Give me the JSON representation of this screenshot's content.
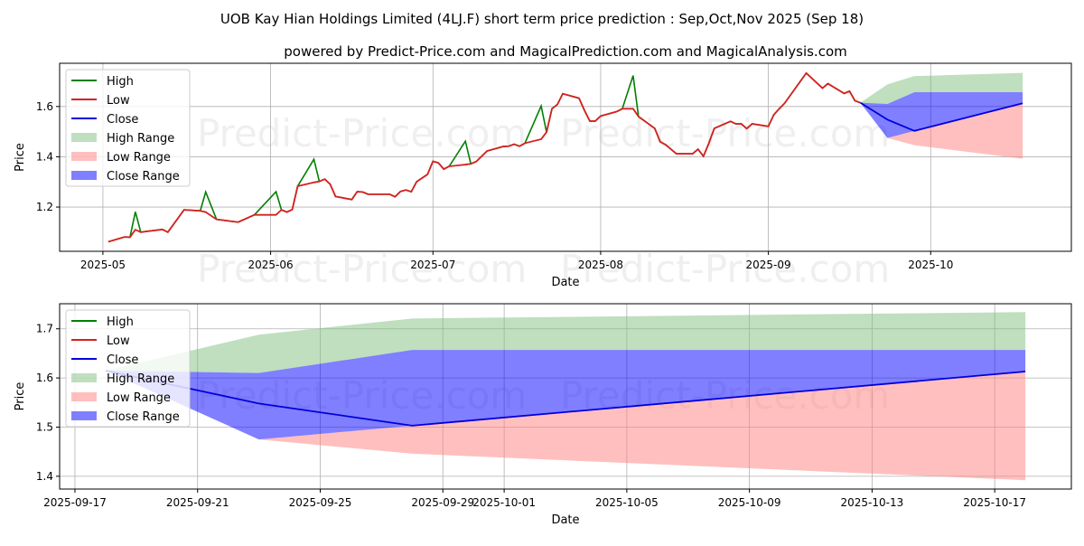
{
  "title": "UOB Kay Hian Holdings Limited (4LJ.F) short term price prediction : Sep,Oct,Nov 2025 (Sep 18)",
  "subtitle": "powered by Predict-Price.com and MagicalPrediction.com and MagicalAnalysis.com",
  "watermark": "Predict-Price.com",
  "colors": {
    "high": "#008000",
    "low": "#d62020",
    "close": "#0000dd",
    "high_range": "#7fbf7f",
    "low_range": "#ff7f7f",
    "close_range": "#0000ff"
  },
  "legend": [
    "High",
    "Low",
    "Close",
    "High Range",
    "Low Range",
    "Close Range"
  ],
  "chart_data": [
    {
      "type": "line",
      "xlabel": "Date",
      "ylabel": "Price",
      "xlim": [
        "2025-04-23T00:00:00Z",
        "2025-10-27T00:00:00Z"
      ],
      "ylim": [
        1.024,
        1.772
      ],
      "xticks": [
        [
          "2025-05-01",
          "2025-05"
        ],
        [
          "2025-06-01",
          "2025-06"
        ],
        [
          "2025-07-01",
          "2025-07"
        ],
        [
          "2025-08-01",
          "2025-08"
        ],
        [
          "2025-09-01",
          "2025-09"
        ],
        [
          "2025-10-01",
          "2025-10"
        ]
      ],
      "yticks": [
        [
          "1.2",
          "1.2"
        ],
        [
          "1.4",
          "1.4"
        ],
        [
          "1.6",
          "1.6"
        ]
      ],
      "grid": true,
      "legend_position": "top-left",
      "low": [
        [
          "2025-05-02",
          1.062
        ],
        [
          "2025-05-05",
          1.081
        ],
        [
          "2025-05-06",
          1.08
        ],
        [
          "2025-05-07",
          1.11
        ],
        [
          "2025-05-08",
          1.1
        ],
        [
          "2025-05-09",
          1.103
        ],
        [
          "2025-05-12",
          1.111
        ],
        [
          "2025-05-13",
          1.1
        ],
        [
          "2025-05-16",
          1.189
        ],
        [
          "2025-05-19",
          1.185
        ],
        [
          "2025-05-20",
          1.18
        ],
        [
          "2025-05-22",
          1.151
        ],
        [
          "2025-05-26",
          1.14
        ],
        [
          "2025-05-29",
          1.169
        ],
        [
          "2025-06-02",
          1.169
        ],
        [
          "2025-06-03",
          1.189
        ],
        [
          "2025-06-04",
          1.18
        ],
        [
          "2025-06-05",
          1.19
        ],
        [
          "2025-06-06",
          1.283
        ],
        [
          "2025-06-09",
          1.298
        ],
        [
          "2025-06-10",
          1.302
        ],
        [
          "2025-06-11",
          1.311
        ],
        [
          "2025-06-12",
          1.291
        ],
        [
          "2025-06-13",
          1.242
        ],
        [
          "2025-06-16",
          1.23
        ],
        [
          "2025-06-17",
          1.261
        ],
        [
          "2025-06-18",
          1.26
        ],
        [
          "2025-06-19",
          1.251
        ],
        [
          "2025-06-23",
          1.251
        ],
        [
          "2025-06-24",
          1.241
        ],
        [
          "2025-06-25",
          1.262
        ],
        [
          "2025-06-26",
          1.268
        ],
        [
          "2025-06-27",
          1.261
        ],
        [
          "2025-06-28",
          1.301
        ],
        [
          "2025-06-30",
          1.33
        ],
        [
          "2025-07-01",
          1.382
        ],
        [
          "2025-07-02",
          1.376
        ],
        [
          "2025-07-03",
          1.351
        ],
        [
          "2025-07-04",
          1.362
        ],
        [
          "2025-07-07",
          1.369
        ],
        [
          "2025-07-08",
          1.372
        ],
        [
          "2025-07-09",
          1.381
        ],
        [
          "2025-07-11",
          1.423
        ],
        [
          "2025-07-14",
          1.441
        ],
        [
          "2025-07-15",
          1.442
        ],
        [
          "2025-07-16",
          1.45
        ],
        [
          "2025-07-17",
          1.442
        ],
        [
          "2025-07-18",
          1.454
        ],
        [
          "2025-07-21",
          1.47
        ],
        [
          "2025-07-22",
          1.498
        ],
        [
          "2025-07-23",
          1.591
        ],
        [
          "2025-07-24",
          1.608
        ],
        [
          "2025-07-25",
          1.651
        ],
        [
          "2025-07-28",
          1.633
        ],
        [
          "2025-07-29",
          1.585
        ],
        [
          "2025-07-30",
          1.542
        ],
        [
          "2025-07-31",
          1.542
        ],
        [
          "2025-08-01",
          1.562
        ],
        [
          "2025-08-04",
          1.58
        ],
        [
          "2025-08-05",
          1.591
        ],
        [
          "2025-08-07",
          1.591
        ],
        [
          "2025-08-08",
          1.56
        ],
        [
          "2025-08-11",
          1.513
        ],
        [
          "2025-08-12",
          1.46
        ],
        [
          "2025-08-13",
          1.448
        ],
        [
          "2025-08-15",
          1.412
        ],
        [
          "2025-08-18",
          1.412
        ],
        [
          "2025-08-19",
          1.43
        ],
        [
          "2025-08-20",
          1.402
        ],
        [
          "2025-08-21",
          1.454
        ],
        [
          "2025-08-22",
          1.513
        ],
        [
          "2025-08-25",
          1.541
        ],
        [
          "2025-08-26",
          1.531
        ],
        [
          "2025-08-27",
          1.531
        ],
        [
          "2025-08-28",
          1.512
        ],
        [
          "2025-08-29",
          1.531
        ],
        [
          "2025-09-01",
          1.521
        ],
        [
          "2025-09-02",
          1.567
        ],
        [
          "2025-09-03",
          1.591
        ],
        [
          "2025-09-04",
          1.613
        ],
        [
          "2025-09-08",
          1.733
        ],
        [
          "2025-09-11",
          1.673
        ],
        [
          "2025-09-12",
          1.691
        ],
        [
          "2025-09-15",
          1.652
        ],
        [
          "2025-09-16",
          1.661
        ],
        [
          "2025-09-17",
          1.623
        ],
        [
          "2025-09-18",
          1.615
        ]
      ],
      "high_overrides": {
        "2025-05-07": 1.181,
        "2025-05-20": 1.26,
        "2025-06-02": 1.261,
        "2025-06-09": 1.39,
        "2025-07-07": 1.462,
        "2025-07-21": 1.602,
        "2025-08-07": 1.723
      },
      "forecast": {
        "dates": [
          "2025-09-18",
          "2025-09-23",
          "2025-09-28",
          "2025-10-18"
        ],
        "close": [
          1.615,
          1.548,
          1.503,
          1.613
        ],
        "high_range": [
          [
            1.615,
            1.615
          ],
          [
            1.61,
            1.688
          ],
          [
            1.657,
            1.721
          ],
          [
            1.657,
            1.734
          ]
        ],
        "close_range": [
          [
            1.615,
            1.615
          ],
          [
            1.475,
            1.61
          ],
          [
            1.503,
            1.657
          ],
          [
            1.613,
            1.657
          ]
        ],
        "low_range": [
          [
            1.615,
            1.615
          ],
          [
            1.475,
            1.475
          ],
          [
            1.446,
            1.503
          ],
          [
            1.392,
            1.613
          ]
        ]
      }
    },
    {
      "type": "line",
      "xlabel": "Date",
      "ylabel": "Price",
      "xlim": [
        "2025-09-16T12:00:00Z",
        "2025-10-19T12:00:00Z"
      ],
      "ylim": [
        1.374,
        1.751
      ],
      "xticks": [
        [
          "2025-09-17",
          "2025-09-17"
        ],
        [
          "2025-09-21",
          "2025-09-21"
        ],
        [
          "2025-09-25",
          "2025-09-25"
        ],
        [
          "2025-09-29",
          "2025-09-29"
        ],
        [
          "2025-10-01",
          "2025-10-01"
        ],
        [
          "2025-10-05",
          "2025-10-05"
        ],
        [
          "2025-10-09",
          "2025-10-09"
        ],
        [
          "2025-10-13",
          "2025-10-13"
        ],
        [
          "2025-10-17",
          "2025-10-17"
        ]
      ],
      "yticks": [
        [
          "1.4",
          "1.4"
        ],
        [
          "1.5",
          "1.5"
        ],
        [
          "1.6",
          "1.6"
        ],
        [
          "1.7",
          "1.7"
        ]
      ],
      "grid": true,
      "legend_position": "top-left",
      "forecast_ref": "same forecast as chart 1"
    }
  ]
}
